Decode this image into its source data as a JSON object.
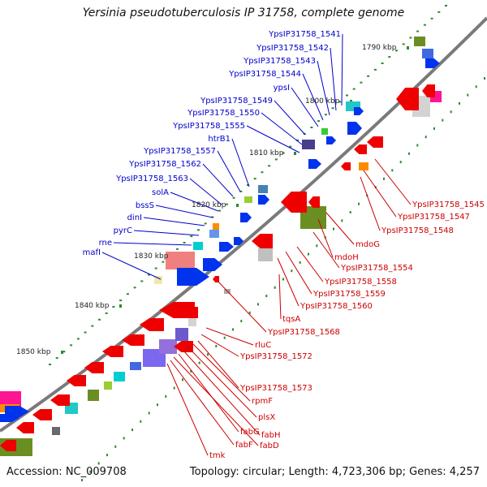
{
  "title": "Yersinia pseudotuberculosis IP 31758, complete genome",
  "footer": {
    "accession": "Accession: NC_009708",
    "summary": "Topology: circular; Length: 4,723,306 bp; Genes: 4,257"
  },
  "colors": {
    "backbone": "#7a7a7a",
    "forward_label": "#0000cc",
    "reverse_label": "#cc0000",
    "tick": "#2e8b2e"
  },
  "ticks": [
    "1790 kbp",
    "1800 kbp",
    "1810 kbp",
    "1820 kbp",
    "1830 kbp",
    "1840 kbp",
    "1850 kbp"
  ],
  "forward_labels": [
    "YpsIP31758_1541",
    "YpsIP31758_1542",
    "YpsIP31758_1543",
    "YpsIP31758_1544",
    "ypsI",
    "YpsIP31758_1549",
    "YpsIP31758_1550",
    "YpsIP31758_1555",
    "htrB1",
    "YpsIP31758_1557",
    "YpsIP31758_1562",
    "YpsIP31758_1563",
    "solA",
    "bssS",
    "dinI",
    "pyrC",
    "rne",
    "mafI"
  ],
  "reverse_labels": [
    "YpsIP31758_1545",
    "YpsIP31758_1547",
    "YpsIP31758_1548",
    "mdoG",
    "mdoH",
    "YpsIP31758_1554",
    "YpsIP31758_1558",
    "YpsIP31758_1559",
    "YpsIP31758_1560",
    "tqsA",
    "YpsIP31758_1568",
    "rluC",
    "YpsIP31758_1572",
    "YpsIP31758_1573",
    "rpmF",
    "plsX",
    "fabH",
    "fabG",
    "fabD",
    "fabF",
    "tmk"
  ]
}
